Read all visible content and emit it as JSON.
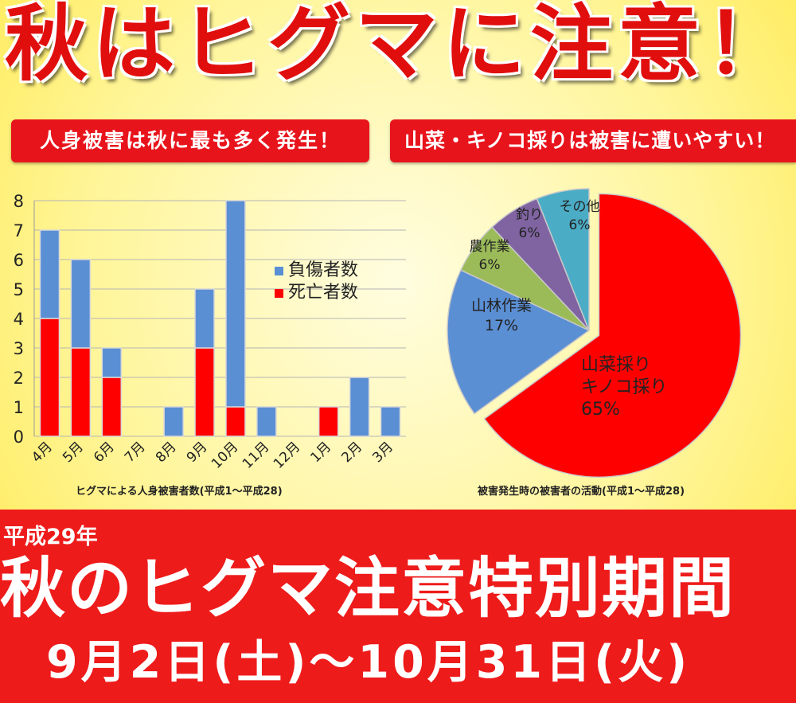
{
  "header": {
    "title": "秋はヒグマに注意！"
  },
  "banners": {
    "left": "人身被害は秋に最も多く発生！",
    "right": "山菜・キノコ採りは被害に遭いやすい！"
  },
  "footer": {
    "year": "平成29年",
    "title": "秋のヒグマ注意特別期間",
    "dates": "9月2日(土)〜10月31日(火)"
  },
  "colors": {
    "injured": "#5b8fd4",
    "death": "#ff0000",
    "banner": "#e8141c"
  },
  "chart_data": [
    {
      "type": "bar",
      "stacked": true,
      "title": "ヒグマによる人身被害者数(平成1〜平成28)",
      "categories": [
        "4月",
        "5月",
        "6月",
        "7月",
        "8月",
        "9月",
        "10月",
        "11月",
        "12月",
        "1月",
        "2月",
        "3月"
      ],
      "series": [
        {
          "name": "死亡者数",
          "color": "#ff0000",
          "values": [
            4,
            3,
            2,
            0,
            0,
            3,
            1,
            0,
            0,
            1,
            0,
            0
          ]
        },
        {
          "name": "負傷者数",
          "color": "#5b8fd4",
          "values": [
            3,
            3,
            1,
            0,
            1,
            2,
            7,
            1,
            0,
            0,
            2,
            1
          ]
        }
      ],
      "ylim": [
        0,
        8
      ],
      "yticks": [
        0,
        1,
        2,
        3,
        4,
        5,
        6,
        7,
        8
      ],
      "grid": true,
      "legend": [
        "負傷者数",
        "死亡者数"
      ],
      "legend_position": "center-right"
    },
    {
      "type": "pie",
      "title": "被害発生時の被害者の活動(平成1〜平成28)",
      "slices": [
        {
          "label": "山菜採り キノコ採り",
          "line1": "山菜採り",
          "line2": "キノコ採り",
          "value": 65,
          "pct_label": "65%",
          "color": "#ff0000"
        },
        {
          "label": "山林作業",
          "line1": "山林作業",
          "line2": "",
          "value": 17,
          "pct_label": "17%",
          "color": "#5b8fd4"
        },
        {
          "label": "農作業",
          "line1": "農作業",
          "line2": "",
          "value": 6,
          "pct_label": "6%",
          "color": "#9bbb59"
        },
        {
          "label": "釣り",
          "line1": "釣り",
          "line2": "",
          "value": 6,
          "pct_label": "6%",
          "color": "#8064a2"
        },
        {
          "label": "その他",
          "line1": "その他",
          "line2": "",
          "value": 6,
          "pct_label": "6%",
          "color": "#4bacc6"
        }
      ]
    }
  ]
}
